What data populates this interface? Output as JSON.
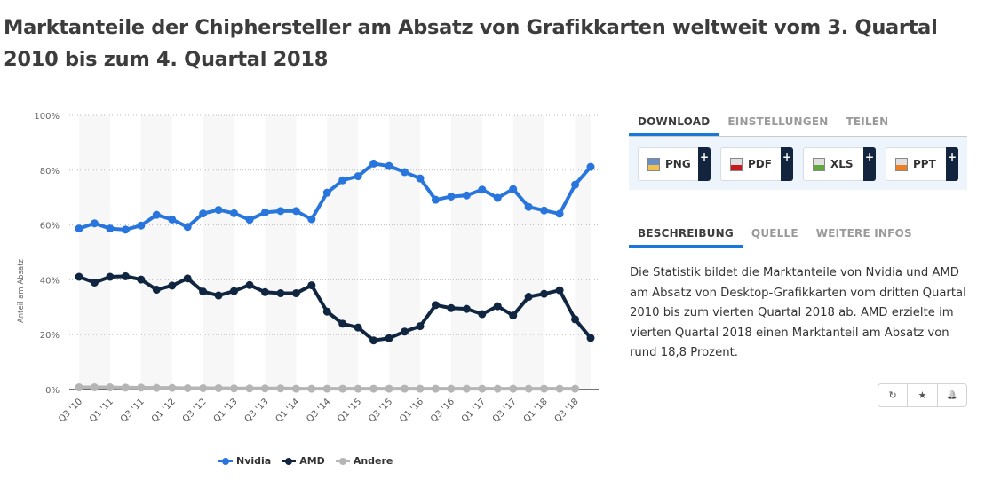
{
  "title": "Marktanteile der Chiphersteller am Absatz von Grafikkarten weltweit vom 3. Quartal 2010 bis zum 4. Quartal 2018",
  "chart_data": {
    "type": "line",
    "title": "Marktanteile der Chiphersteller am Absatz von Grafikkarten weltweit vom 3. Quartal 2010 bis zum 4. Quartal 2018",
    "xlabel": "",
    "ylabel": "Anteil am Absatz",
    "ylim": [
      0,
      100
    ],
    "yticks": [
      0,
      20,
      40,
      60,
      80,
      100
    ],
    "ytick_labels": [
      "0%",
      "20%",
      "40%",
      "60%",
      "80%",
      "100%"
    ],
    "grid": true,
    "legend_position": "bottom",
    "x": [
      "Q3 '10",
      "Q4 '10",
      "Q1 '11",
      "Q2 '11",
      "Q3 '11",
      "Q4 '11",
      "Q1 '12",
      "Q2 '12",
      "Q3 '12",
      "Q4 '12",
      "Q1 '13",
      "Q2 '13",
      "Q3 '13",
      "Q4 '13",
      "Q1 '14",
      "Q2 '14",
      "Q3 '14",
      "Q4 '14",
      "Q1 '15",
      "Q2 '15",
      "Q3 '15",
      "Q4 '15",
      "Q1 '16",
      "Q2 '16",
      "Q3 '16",
      "Q4 '16",
      "Q1 '17",
      "Q2 '17",
      "Q3 '17",
      "Q4 '17",
      "Q1 '18",
      "Q2 '18",
      "Q3 '18",
      "Q4 '18"
    ],
    "xtick_labels": [
      "Q3 '10",
      "Q1 '11",
      "Q3 '11",
      "Q1 '12",
      "Q3 '12",
      "Q1 '13",
      "Q3 '13",
      "Q1 '14",
      "Q3 '14",
      "Q1 '15",
      "Q3 '15",
      "Q1 '16",
      "Q3 '16",
      "Q1 '17",
      "Q3 '17",
      "Q1 '18",
      "Q3 '18"
    ],
    "series": [
      {
        "name": "Nvidia",
        "color": "#2876dd",
        "values": [
          58.7,
          60.6,
          58.7,
          58.3,
          59.8,
          63.7,
          62.0,
          59.3,
          64.2,
          65.5,
          64.3,
          61.9,
          64.6,
          65.1,
          65.1,
          62.1,
          71.8,
          76.3,
          77.8,
          82.4,
          81.5,
          79.3,
          77.0,
          69.2,
          70.4,
          70.8,
          72.9,
          69.9,
          73.1,
          66.6,
          65.3,
          64.1,
          74.7,
          81.2
        ]
      },
      {
        "name": "AMD",
        "color": "#0f2540",
        "values": [
          41.1,
          39.0,
          41.1,
          41.3,
          40.1,
          36.4,
          37.9,
          40.5,
          35.7,
          34.3,
          35.9,
          38.1,
          35.5,
          35.1,
          35.1,
          38.0,
          28.4,
          24.0,
          22.6,
          17.9,
          18.7,
          21.1,
          23.1,
          30.8,
          29.7,
          29.4,
          27.5,
          30.4,
          27.0,
          33.8,
          34.9,
          36.2,
          25.6,
          18.8
        ]
      },
      {
        "name": "Andere",
        "color": "#b5b5b5",
        "values": [
          0.8,
          0.8,
          0.8,
          0.7,
          0.7,
          0.6,
          0.6,
          0.5,
          0.5,
          0.5,
          0.4,
          0.4,
          0.4,
          0.4,
          0.3,
          0.3,
          0.3,
          0.3,
          0.3,
          0.3,
          0.3,
          0.3,
          0.3,
          0.3,
          0.3,
          0.3,
          0.3,
          0.3,
          0.3,
          0.3,
          0.3,
          0.3,
          0.3,
          null
        ]
      }
    ]
  },
  "download_tabs": [
    {
      "label": "DOWNLOAD",
      "active": true
    },
    {
      "label": "EINSTELLUNGEN",
      "active": false
    },
    {
      "label": "TEILEN",
      "active": false
    }
  ],
  "downloads": [
    {
      "label": "PNG",
      "icon": "png-file-icon",
      "plus": "+"
    },
    {
      "label": "PDF",
      "icon": "pdf-file-icon",
      "plus": "+"
    },
    {
      "label": "XLS",
      "icon": "xls-file-icon",
      "plus": "+"
    },
    {
      "label": "PPT",
      "icon": "ppt-file-icon",
      "plus": "+"
    }
  ],
  "info_tabs": [
    {
      "label": "BESCHREIBUNG",
      "active": true
    },
    {
      "label": "QUELLE",
      "active": false
    },
    {
      "label": "WEITERE INFOS",
      "active": false
    }
  ],
  "description": "Die Statistik bildet die Marktanteile von Nvidia und AMD am Absatz von Desktop-Grafikkarten vom dritten Quartal 2010 bis zum vierten Quartal 2018 ab. AMD erzielte im vierten Quartal 2018 einen Marktanteil am Absatz von rund 18,8 Prozent.",
  "actions": [
    {
      "icon": "history-icon",
      "glyph": "↻"
    },
    {
      "icon": "star-icon",
      "glyph": "★"
    },
    {
      "icon": "bell-icon",
      "glyph": "🔔"
    }
  ]
}
